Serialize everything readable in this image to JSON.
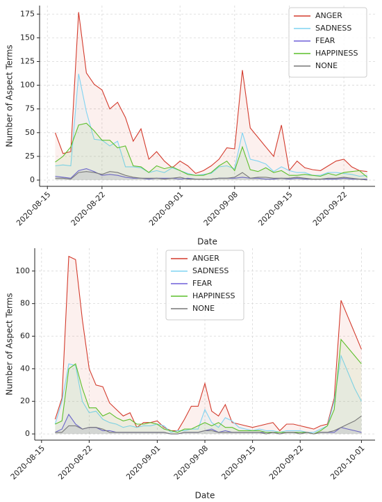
{
  "chart_data": [
    {
      "type": "line",
      "xlabel": "Date",
      "ylabel": "Number of Aspect Terms",
      "grid": true,
      "legend": "upper right",
      "fill": true,
      "xlim": [
        "2020-08-14",
        "2020-09-26"
      ],
      "ylim": [
        -6.6,
        184
      ],
      "xticks": [
        "2020-08-15",
        "2020-08-22",
        "2020-09-01",
        "2020-09-08",
        "2020-09-15",
        "2020-09-22"
      ],
      "yticks": [
        0,
        25,
        50,
        75,
        100,
        125,
        150,
        175
      ],
      "x": [
        "2020-08-16",
        "2020-08-17",
        "2020-08-18",
        "2020-08-19",
        "2020-08-20",
        "2020-08-21",
        "2020-08-22",
        "2020-08-23",
        "2020-08-24",
        "2020-08-25",
        "2020-08-26",
        "2020-08-27",
        "2020-08-28",
        "2020-08-29",
        "2020-08-30",
        "2020-08-31",
        "2020-09-01",
        "2020-09-02",
        "2020-09-03",
        "2020-09-04",
        "2020-09-05",
        "2020-09-06",
        "2020-09-07",
        "2020-09-08",
        "2020-09-09",
        "2020-09-10",
        "2020-09-11",
        "2020-09-12",
        "2020-09-13",
        "2020-09-14",
        "2020-09-15",
        "2020-09-16",
        "2020-09-17",
        "2020-09-18",
        "2020-09-19",
        "2020-09-20",
        "2020-09-21",
        "2020-09-22",
        "2020-09-23",
        "2020-09-24",
        "2020-09-25"
      ],
      "series": [
        {
          "name": "ANGER",
          "color": "#d33a2c",
          "values": [
            50,
            28,
            30,
            177,
            113,
            101,
            95,
            75,
            82,
            66,
            41,
            54,
            22,
            30,
            20,
            13,
            20,
            15,
            7,
            10,
            15,
            22,
            34,
            33,
            116,
            55,
            45,
            35,
            25,
            58,
            10,
            20,
            13,
            11,
            10,
            15,
            20,
            22,
            14,
            10,
            9
          ]
        },
        {
          "name": "SADNESS",
          "color": "#7fd3f2",
          "values": [
            15,
            16,
            15,
            112,
            72,
            43,
            42,
            36,
            41,
            14,
            14,
            13,
            8,
            10,
            8,
            13,
            10,
            7,
            5,
            6,
            7,
            14,
            15,
            12,
            50,
            22,
            20,
            17,
            9,
            14,
            10,
            8,
            8,
            5,
            5,
            8,
            8,
            7,
            6,
            4,
            5
          ]
        },
        {
          "name": "FEAR",
          "color": "#6e5fd8",
          "values": [
            4,
            3,
            2,
            10,
            12,
            9,
            5,
            6,
            5,
            3,
            2,
            2,
            1,
            2,
            2,
            2,
            1,
            2,
            1,
            1,
            1,
            2,
            2,
            2,
            3,
            2,
            2,
            1,
            1,
            2,
            1,
            2,
            1,
            1,
            1,
            1,
            1,
            2,
            1,
            1,
            1
          ]
        },
        {
          "name": "HAPPINESS",
          "color": "#5cbf2a",
          "values": [
            19,
            25,
            35,
            58,
            60,
            52,
            42,
            42,
            34,
            36,
            15,
            14,
            8,
            15,
            12,
            14,
            10,
            6,
            5,
            5,
            8,
            15,
            20,
            10,
            35,
            11,
            9,
            13,
            8,
            10,
            5,
            5,
            6,
            5,
            4,
            7,
            5,
            8,
            9,
            10,
            3
          ]
        },
        {
          "name": "NONE",
          "color": "#777777",
          "values": [
            2,
            2,
            1,
            8,
            9,
            8,
            6,
            9,
            8,
            5,
            3,
            2,
            2,
            2,
            1,
            2,
            3,
            1,
            1,
            1,
            1,
            2,
            2,
            3,
            8,
            2,
            3,
            3,
            2,
            2,
            2,
            3,
            2,
            1,
            1,
            2,
            2,
            3,
            2,
            1,
            0
          ]
        }
      ]
    },
    {
      "type": "line",
      "xlabel": "Date",
      "ylabel": "Number of Aspect Terms",
      "grid": true,
      "legend": "upper center",
      "fill": true,
      "xlim": [
        "2020-08-14",
        "2020-10-03"
      ],
      "ylim": [
        -3.8,
        114
      ],
      "xticks": [
        "2020-08-15",
        "2020-08-22",
        "2020-09-01",
        "2020-09-08",
        "2020-09-15",
        "2020-09-22",
        "2020-10-01"
      ],
      "yticks": [
        0,
        20,
        40,
        60,
        80,
        100
      ],
      "x": [
        "2020-08-17",
        "2020-08-18",
        "2020-08-19",
        "2020-08-20",
        "2020-08-21",
        "2020-08-22",
        "2020-08-23",
        "2020-08-24",
        "2020-08-25",
        "2020-08-26",
        "2020-08-27",
        "2020-08-28",
        "2020-08-29",
        "2020-08-30",
        "2020-08-31",
        "2020-09-01",
        "2020-09-02",
        "2020-09-03",
        "2020-09-04",
        "2020-09-05",
        "2020-09-06",
        "2020-09-07",
        "2020-09-08",
        "2020-09-09",
        "2020-09-10",
        "2020-09-11",
        "2020-09-12",
        "2020-09-13",
        "2020-09-14",
        "2020-09-15",
        "2020-09-16",
        "2020-09-17",
        "2020-09-18",
        "2020-09-19",
        "2020-09-20",
        "2020-09-21",
        "2020-09-22",
        "2020-09-23",
        "2020-09-24",
        "2020-09-25",
        "2020-09-26",
        "2020-09-27",
        "2020-09-28",
        "2020-09-29",
        "2020-09-30",
        "2020-10-01"
      ],
      "series": [
        {
          "name": "ANGER",
          "color": "#d33a2c",
          "values": [
            9,
            22,
            109,
            107,
            70,
            40,
            30,
            29,
            19,
            15,
            11,
            13,
            4,
            7,
            7,
            8,
            4,
            2,
            2,
            9,
            17,
            17,
            31,
            14,
            11,
            18,
            7,
            6,
            5,
            4,
            5,
            6,
            7,
            2,
            6,
            6,
            5,
            4,
            3,
            5,
            6,
            22,
            82,
            72,
            62,
            52
          ]
        },
        {
          "name": "SADNESS",
          "color": "#7fd3f2",
          "values": [
            6,
            20,
            43,
            42,
            20,
            13,
            14,
            9,
            7,
            6,
            4,
            5,
            4,
            5,
            5,
            6,
            5,
            1,
            2,
            2,
            3,
            3,
            15,
            7,
            4,
            10,
            8,
            4,
            3,
            2,
            3,
            2,
            2,
            1,
            2,
            2,
            2,
            1,
            1,
            3,
            5,
            20,
            48,
            38,
            28,
            20
          ]
        },
        {
          "name": "FEAR",
          "color": "#6e5fd8",
          "values": [
            1,
            3,
            12,
            6,
            3,
            4,
            4,
            2,
            2,
            1,
            1,
            1,
            1,
            1,
            1,
            1,
            1,
            0,
            0,
            1,
            1,
            1,
            2,
            3,
            1,
            2,
            1,
            1,
            1,
            1,
            1,
            1,
            1,
            0,
            1,
            1,
            1,
            1,
            0,
            1,
            1,
            1,
            4,
            3,
            2,
            1
          ]
        },
        {
          "name": "HAPPINESS",
          "color": "#5cbf2a",
          "values": [
            6,
            8,
            40,
            43,
            28,
            16,
            16,
            11,
            13,
            10,
            8,
            9,
            6,
            6,
            7,
            6,
            3,
            2,
            1,
            3,
            3,
            5,
            7,
            5,
            7,
            4,
            4,
            2,
            2,
            2,
            2,
            1,
            1,
            1,
            1,
            1,
            1,
            1,
            0,
            2,
            5,
            15,
            58,
            53,
            48,
            43
          ]
        },
        {
          "name": "NONE",
          "color": "#777777",
          "values": [
            1,
            1,
            5,
            5,
            3,
            4,
            4,
            3,
            1,
            1,
            1,
            1,
            1,
            1,
            1,
            1,
            1,
            0,
            0,
            1,
            1,
            1,
            2,
            2,
            1,
            1,
            1,
            1,
            1,
            1,
            1,
            0,
            1,
            0,
            1,
            1,
            0,
            1,
            0,
            1,
            1,
            2,
            4,
            6,
            8,
            11
          ]
        }
      ]
    }
  ]
}
